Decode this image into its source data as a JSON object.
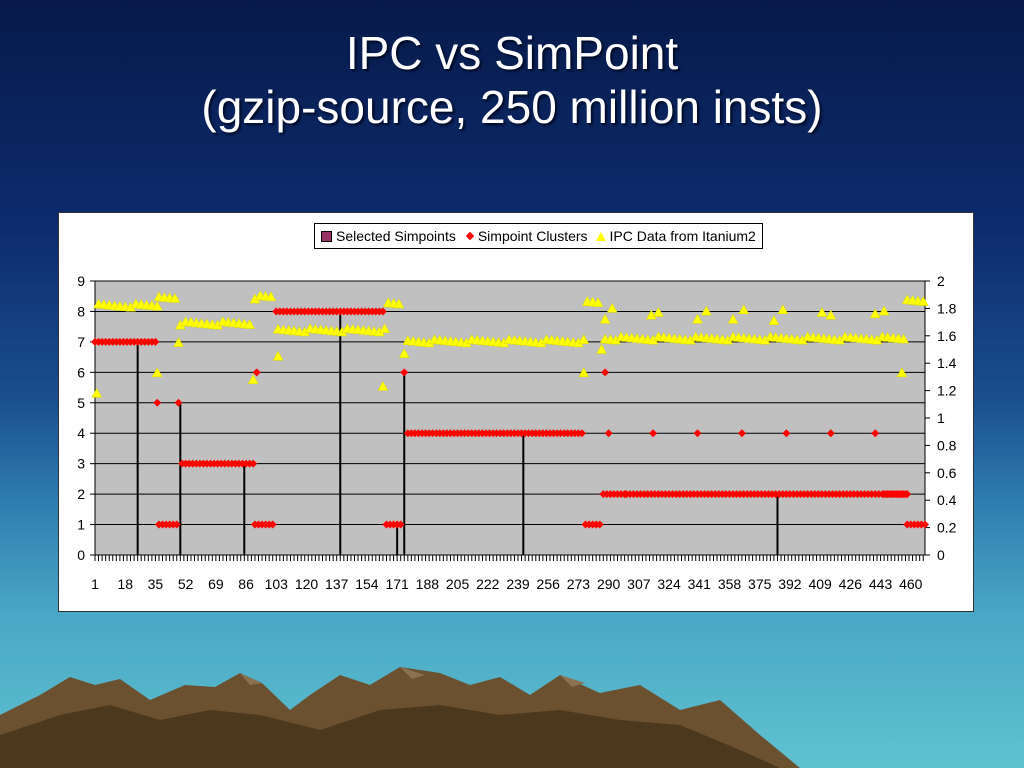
{
  "slide": {
    "title_line1": "IPC vs SimPoint",
    "title_line2": "(gzip-source, 250 million insts)"
  },
  "chart_data": {
    "type": "scatter",
    "legend": [
      {
        "name": "Selected Simpoints",
        "marker": "square",
        "color": "#993366"
      },
      {
        "name": "Simpoint Clusters",
        "marker": "diamond",
        "color": "#ff0000"
      },
      {
        "name": "IPC Data from Itanium2",
        "marker": "triangle",
        "color": "#ffff00"
      }
    ],
    "x_range": [
      1,
      468
    ],
    "x_tick_labels": [
      "1",
      "18",
      "35",
      "52",
      "69",
      "86",
      "103",
      "120",
      "137",
      "154",
      "171",
      "188",
      "205",
      "222",
      "239",
      "256",
      "273",
      "290",
      "307",
      "324",
      "341",
      "358",
      "375",
      "392",
      "409",
      "426",
      "443",
      "460"
    ],
    "y_left_range": [
      0,
      9
    ],
    "y_left_ticks": [
      "0",
      "1",
      "2",
      "3",
      "4",
      "5",
      "6",
      "7",
      "8",
      "9"
    ],
    "y_right_range": [
      0,
      2
    ],
    "y_right_ticks": [
      "0",
      "0.2",
      "0.4",
      "0.6",
      "0.8",
      "1",
      "1.2",
      "1.4",
      "1.6",
      "1.8",
      "2"
    ],
    "plot_background": "#c0c0c0",
    "horizontal_gridlines": true,
    "legend_position": "top",
    "series": [
      {
        "name": "Selected Simpoints",
        "axis": "left",
        "color": "#000000",
        "points": [
          [
            25,
            7
          ],
          [
            49,
            5
          ],
          [
            85,
            3
          ],
          [
            139,
            8
          ],
          [
            171,
            1
          ],
          [
            175,
            6
          ],
          [
            242,
            4
          ],
          [
            385,
            2
          ]
        ]
      },
      {
        "name": "Simpoint Clusters",
        "axis": "left",
        "color": "#ff0000",
        "segments": [
          {
            "from": 1,
            "to": 36,
            "value": 7
          },
          {
            "from": 37,
            "to": 48,
            "value": 1
          },
          {
            "from": 50,
            "to": 90,
            "value": 3
          },
          {
            "from": 91,
            "to": 102,
            "value": 1
          },
          {
            "from": 103,
            "to": 164,
            "value": 8
          },
          {
            "from": 165,
            "to": 174,
            "value": 1
          },
          {
            "from": 177,
            "to": 276,
            "value": 4
          },
          {
            "from": 277,
            "to": 286,
            "value": 1
          },
          {
            "from": 287,
            "to": 299,
            "value": 2
          },
          {
            "from": 300,
            "to": 459,
            "value": 2
          },
          {
            "from": 445,
            "to": 457,
            "value": 2
          },
          {
            "from": 458,
            "to": 468,
            "value": 1
          }
        ],
        "points": [
          [
            36,
            5
          ],
          [
            48,
            5
          ],
          [
            92,
            6
          ],
          [
            175,
            6
          ],
          [
            288,
            6
          ],
          [
            290,
            4
          ],
          [
            315,
            4
          ],
          [
            340,
            4
          ],
          [
            365,
            4
          ],
          [
            390,
            4
          ],
          [
            415,
            4
          ],
          [
            440,
            4
          ]
        ]
      },
      {
        "name": "IPC Data from Itanium2",
        "axis": "right",
        "color": "#ffff00",
        "segments": [
          {
            "from": 3,
            "to": 36,
            "value": 1.82
          },
          {
            "from": 37,
            "to": 48,
            "value": 1.88
          },
          {
            "from": 49,
            "to": 90,
            "value": 1.69
          },
          {
            "from": 91,
            "to": 101,
            "value": 1.88
          },
          {
            "from": 104,
            "to": 164,
            "value": 1.64
          },
          {
            "from": 166,
            "to": 173,
            "value": 1.84
          },
          {
            "from": 177,
            "to": 276,
            "value": 1.56
          },
          {
            "from": 278,
            "to": 284,
            "value": 1.85
          },
          {
            "from": 288,
            "to": 456,
            "value": 1.58
          },
          {
            "from": 458,
            "to": 467,
            "value": 1.85
          }
        ],
        "points": [
          [
            2,
            1.18
          ],
          [
            36,
            1.33
          ],
          [
            48,
            1.55
          ],
          [
            90,
            1.28
          ],
          [
            104,
            1.45
          ],
          [
            163,
            1.23
          ],
          [
            175,
            1.47
          ],
          [
            276,
            1.33
          ],
          [
            286,
            1.5
          ],
          [
            288,
            1.72
          ],
          [
            292,
            1.8
          ],
          [
            314,
            1.75
          ],
          [
            318,
            1.77
          ],
          [
            340,
            1.72
          ],
          [
            345,
            1.78
          ],
          [
            360,
            1.72
          ],
          [
            366,
            1.79
          ],
          [
            383,
            1.71
          ],
          [
            388,
            1.79
          ],
          [
            410,
            1.77
          ],
          [
            415,
            1.75
          ],
          [
            440,
            1.76
          ],
          [
            445,
            1.78
          ],
          [
            455,
            1.33
          ]
        ]
      }
    ]
  }
}
